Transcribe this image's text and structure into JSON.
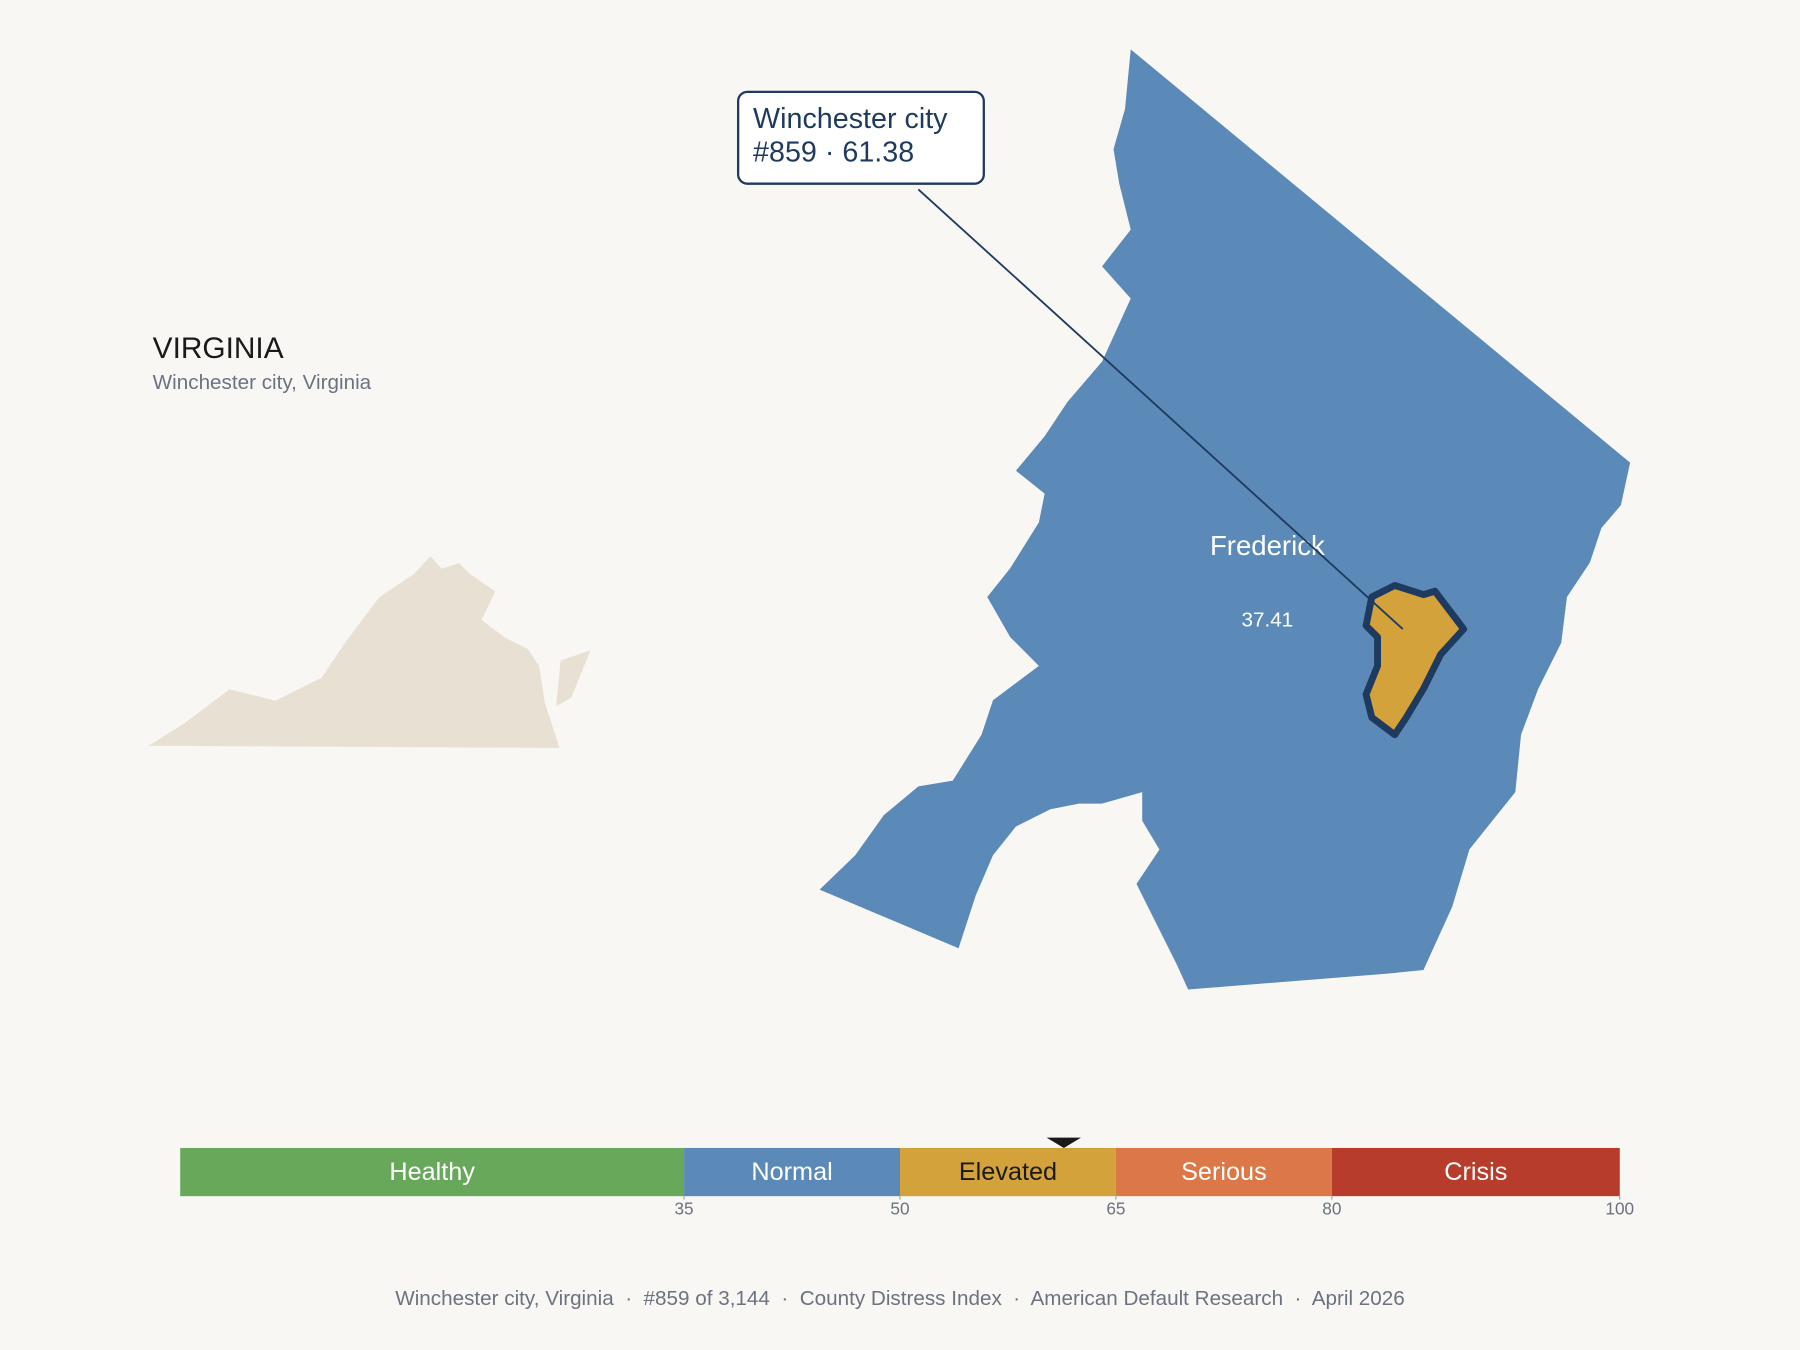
{
  "state": {
    "title": "VIRGINIA",
    "subtitle": "Winchester city, Virginia"
  },
  "map": {
    "county": {
      "name": "Frederick",
      "score": 37.41
    },
    "city": {
      "name": "Winchester city",
      "score": 61.38,
      "callout": "#859 · 61.38"
    }
  },
  "scale": {
    "xlim": [
      0,
      100
    ],
    "xticks": [
      35,
      50,
      65,
      80,
      100
    ],
    "bands": [
      {
        "name": "Healthy",
        "color": "#67a85a",
        "label_color": "#ffffff"
      },
      {
        "name": "Normal",
        "color": "#5b89b8",
        "label_color": "#ffffff"
      },
      {
        "name": "Elevated",
        "color": "#d4a23a",
        "label_color": "#1a1a1a"
      },
      {
        "name": "Serious",
        "color": "#dc7747",
        "label_color": "#ffffff"
      },
      {
        "name": "Crisis",
        "color": "#b83c2c",
        "label_color": "#ffffff"
      }
    ]
  },
  "footer": "Winchester city, Virginia  ·  #859 of 3,144  ·  County Distress Index  ·  American Default Research  ·  April 2026"
}
